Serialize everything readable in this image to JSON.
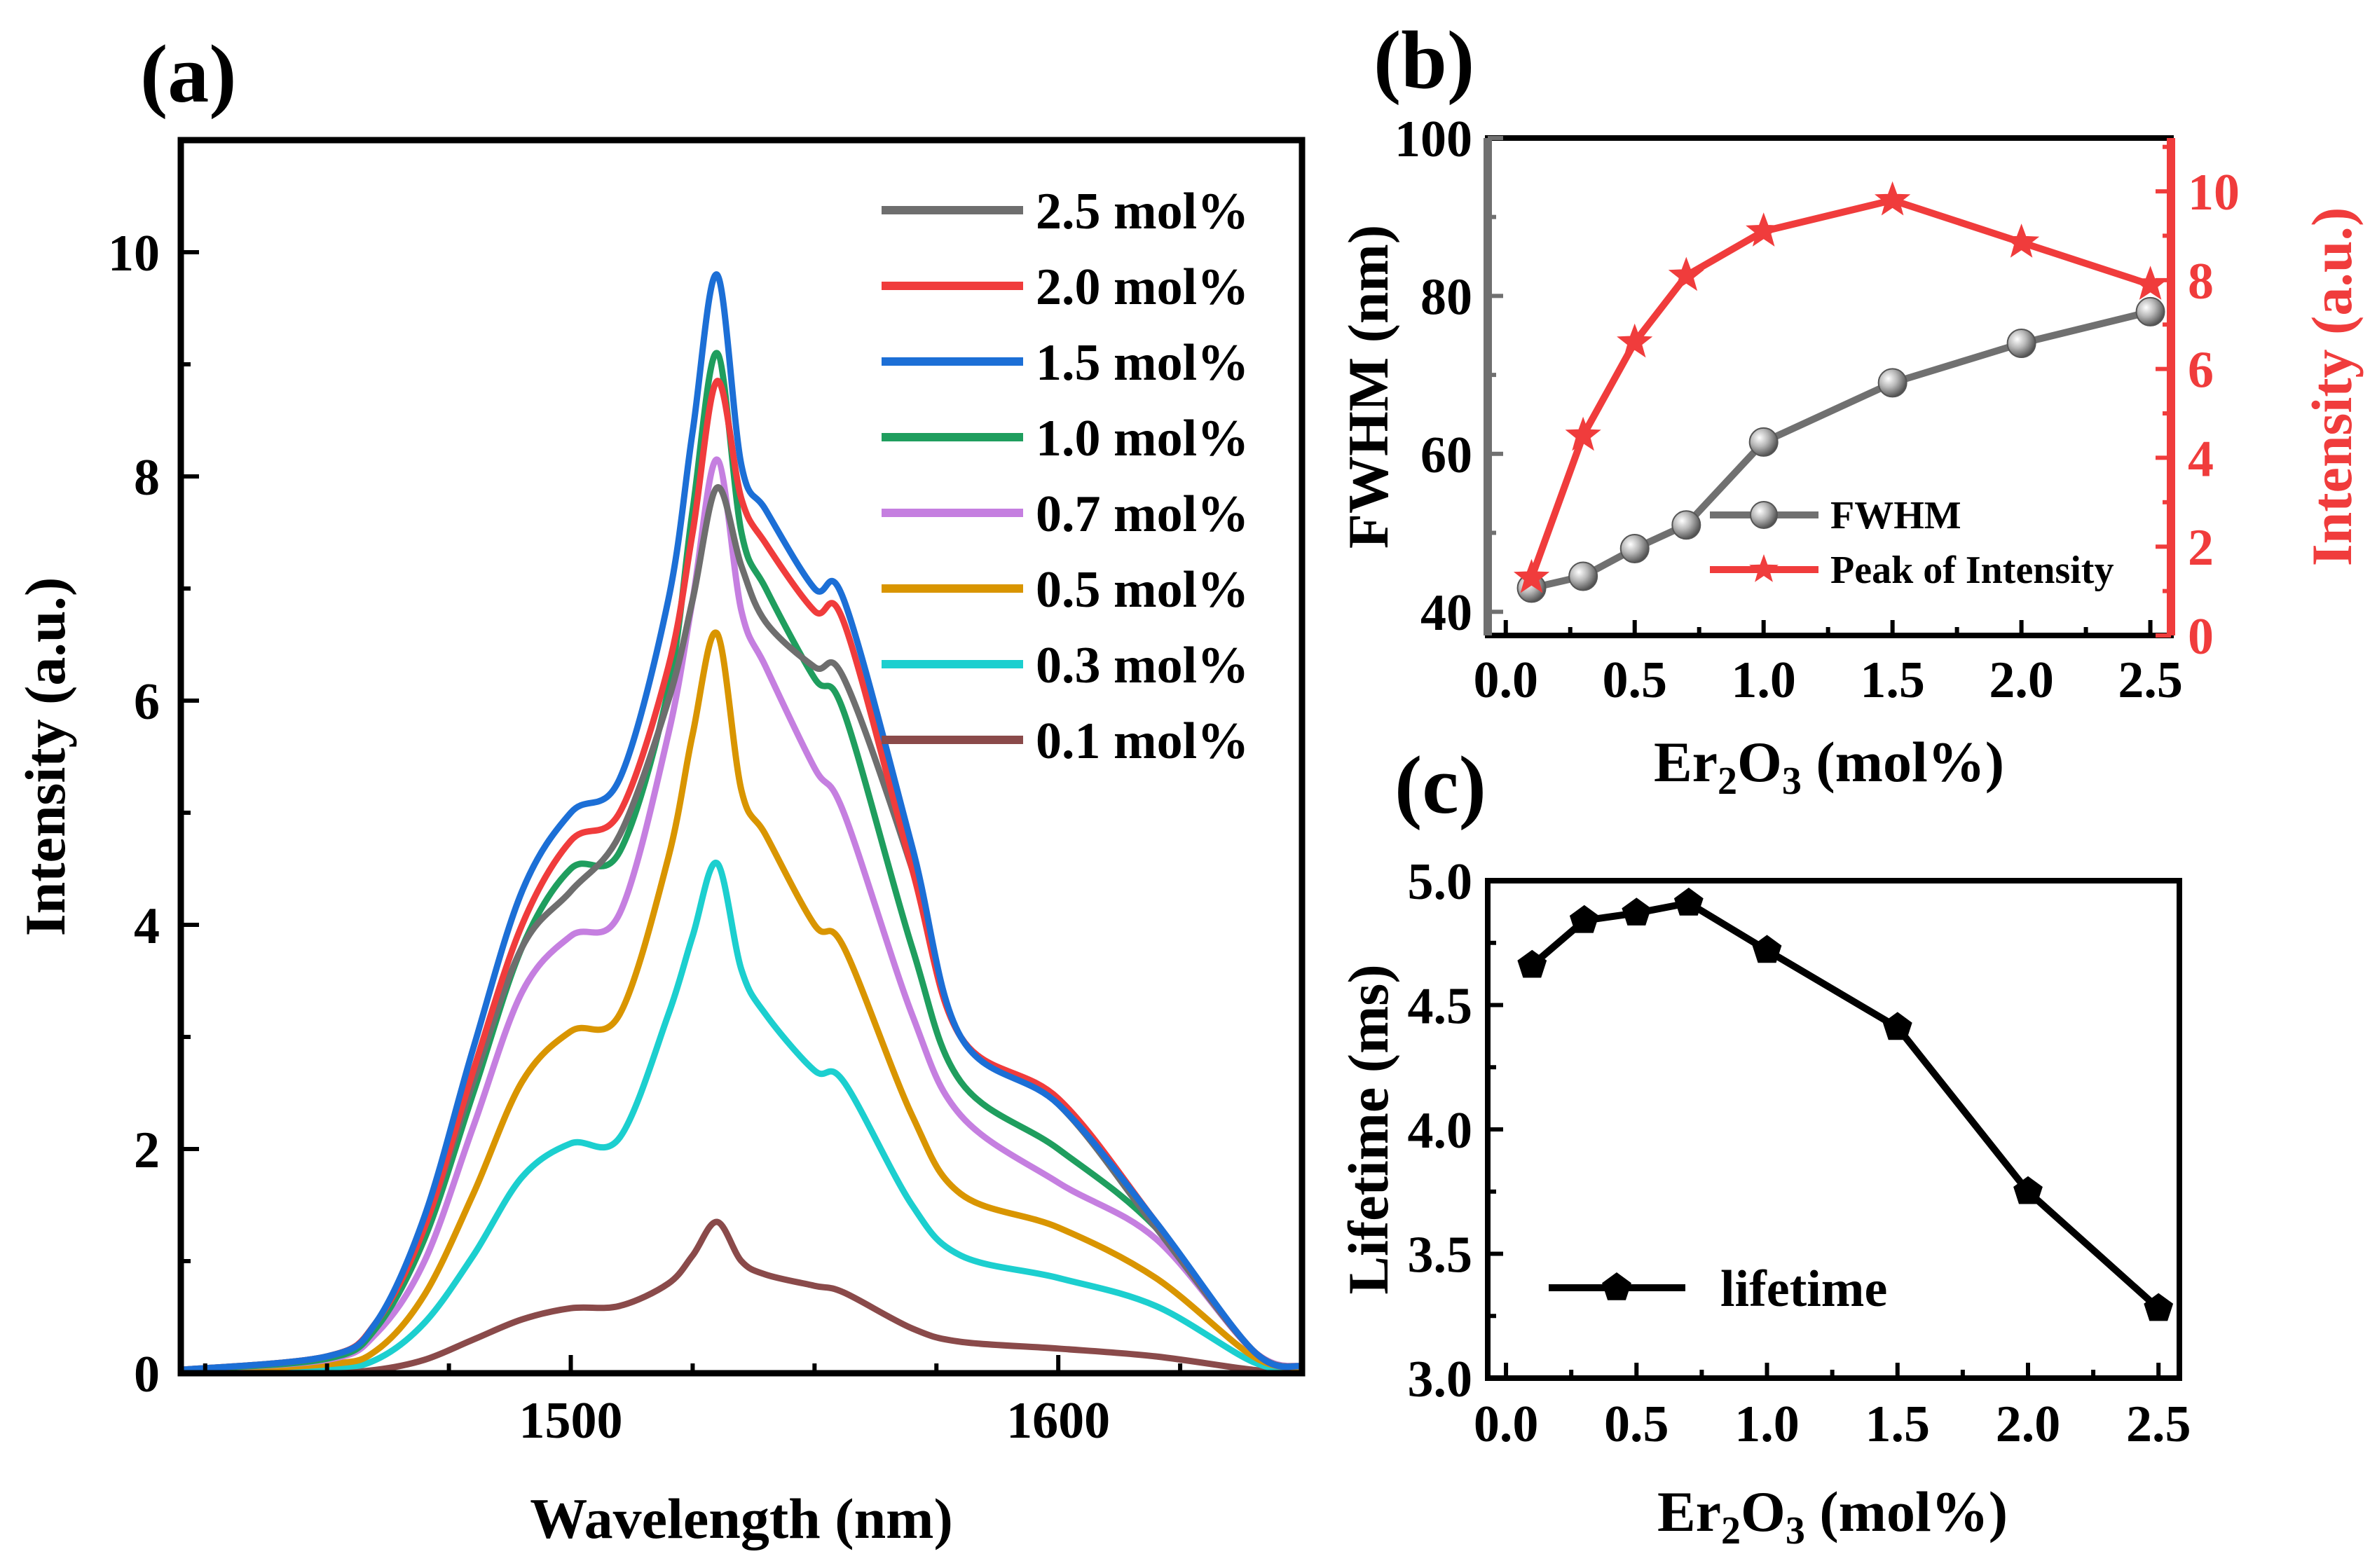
{
  "chart_data": [
    {
      "panel": "(a)",
      "type": "line",
      "xlabel": "Wavelength (nm)",
      "ylabel": "Intensity (a.u.)",
      "xlim": [
        1420,
        1650
      ],
      "ylim": [
        0,
        11
      ],
      "xticks": [
        1500,
        1600
      ],
      "yticks": [
        0,
        2,
        4,
        6,
        8,
        10
      ],
      "legend_position": "top-right",
      "series_order_draw": [
        "0.1 mol%",
        "0.3 mol%",
        "0.5 mol%",
        "0.7 mol%",
        "1.0 mol%",
        "2.5 mol%",
        "2.0 mol%",
        "1.5 mol%"
      ],
      "series": [
        {
          "name": "2.5 mol%",
          "color": "#6e6e6e",
          "x": [
            1420,
            1450,
            1460,
            1470,
            1480,
            1490,
            1500,
            1510,
            1520,
            1525,
            1530,
            1535,
            1540,
            1550,
            1556,
            1570,
            1580,
            1600,
            1620,
            1640,
            1650
          ],
          "values": [
            0.03,
            0.15,
            0.45,
            1.3,
            2.6,
            3.8,
            4.3,
            4.8,
            6.0,
            6.9,
            7.9,
            7.2,
            6.7,
            6.3,
            6.2,
            4.5,
            3.0,
            2.4,
            1.3,
            0.2,
            0.06
          ]
        },
        {
          "name": "2.0 mol%",
          "color": "#f03c3c",
          "x": [
            1420,
            1450,
            1460,
            1470,
            1480,
            1490,
            1500,
            1510,
            1520,
            1525,
            1530,
            1535,
            1540,
            1550,
            1556,
            1570,
            1580,
            1600,
            1620,
            1640,
            1650
          ],
          "values": [
            0.03,
            0.15,
            0.45,
            1.3,
            2.7,
            4.0,
            4.75,
            5.0,
            6.3,
            7.5,
            8.85,
            7.8,
            7.4,
            6.8,
            6.7,
            4.5,
            3.0,
            2.45,
            1.35,
            0.2,
            0.06
          ]
        },
        {
          "name": "1.5 mol%",
          "color": "#1c6fd6",
          "x": [
            1420,
            1450,
            1460,
            1470,
            1480,
            1490,
            1500,
            1510,
            1520,
            1525,
            1530,
            1535,
            1540,
            1550,
            1556,
            1570,
            1580,
            1600,
            1620,
            1640,
            1650
          ],
          "values": [
            0.03,
            0.15,
            0.45,
            1.4,
            2.9,
            4.3,
            5.0,
            5.3,
            6.9,
            8.4,
            9.8,
            8.1,
            7.7,
            7.0,
            6.9,
            4.7,
            3.0,
            2.4,
            1.35,
            0.2,
            0.06
          ]
        },
        {
          "name": "1.0 mol%",
          "color": "#1f9e5e",
          "x": [
            1420,
            1450,
            1460,
            1470,
            1480,
            1490,
            1500,
            1510,
            1520,
            1525,
            1530,
            1535,
            1540,
            1550,
            1556,
            1570,
            1580,
            1600,
            1620,
            1640,
            1650
          ],
          "values": [
            0.03,
            0.13,
            0.4,
            1.2,
            2.5,
            3.8,
            4.5,
            4.65,
            6.1,
            7.7,
            9.1,
            7.5,
            7.0,
            6.2,
            5.9,
            3.8,
            2.6,
            2.0,
            1.3,
            0.2,
            0.06
          ]
        },
        {
          "name": "0.7 mol%",
          "color": "#c57fe0",
          "x": [
            1420,
            1450,
            1460,
            1470,
            1480,
            1490,
            1500,
            1510,
            1520,
            1525,
            1530,
            1535,
            1540,
            1550,
            1556,
            1570,
            1580,
            1600,
            1620,
            1640,
            1650
          ],
          "values": [
            0.03,
            0.12,
            0.35,
            1.0,
            2.2,
            3.4,
            3.9,
            4.1,
            5.7,
            6.9,
            8.15,
            6.8,
            6.3,
            5.4,
            5.0,
            3.2,
            2.3,
            1.7,
            1.2,
            0.2,
            0.06
          ]
        },
        {
          "name": "0.5 mol%",
          "color": "#d99500",
          "x": [
            1420,
            1450,
            1460,
            1470,
            1480,
            1490,
            1500,
            1510,
            1520,
            1525,
            1530,
            1535,
            1540,
            1550,
            1556,
            1570,
            1580,
            1600,
            1620,
            1640,
            1650
          ],
          "values": [
            0.02,
            0.08,
            0.2,
            0.7,
            1.6,
            2.6,
            3.05,
            3.2,
            4.6,
            5.7,
            6.6,
            5.2,
            4.8,
            4.0,
            3.8,
            2.3,
            1.6,
            1.3,
            0.85,
            0.15,
            0.05
          ]
        },
        {
          "name": "0.3 mol%",
          "color": "#1ccfcf",
          "x": [
            1420,
            1450,
            1460,
            1470,
            1480,
            1490,
            1500,
            1510,
            1520,
            1525,
            1530,
            1535,
            1540,
            1550,
            1556,
            1570,
            1580,
            1600,
            1620,
            1640,
            1650
          ],
          "values": [
            0.02,
            0.05,
            0.12,
            0.45,
            1.05,
            1.75,
            2.05,
            2.1,
            3.2,
            3.9,
            4.55,
            3.6,
            3.2,
            2.7,
            2.6,
            1.5,
            1.05,
            0.85,
            0.6,
            0.1,
            0.03
          ]
        },
        {
          "name": "0.1 mol%",
          "color": "#8a4a4a",
          "x": [
            1420,
            1450,
            1460,
            1470,
            1480,
            1490,
            1500,
            1510,
            1520,
            1525,
            1530,
            1535,
            1540,
            1550,
            1556,
            1570,
            1580,
            1600,
            1620,
            1640,
            1650
          ],
          "values": [
            0.0,
            0.01,
            0.03,
            0.12,
            0.3,
            0.48,
            0.58,
            0.6,
            0.8,
            1.05,
            1.35,
            1.0,
            0.88,
            0.78,
            0.72,
            0.4,
            0.28,
            0.22,
            0.15,
            0.03,
            0.01
          ]
        }
      ]
    },
    {
      "panel": "(b)",
      "type": "line",
      "xlabel_main": "Er",
      "xlabel_sub2": "2",
      "xlabel_mid": "O",
      "xlabel_sub3": "3",
      "xlabel_tail": " (mol%)",
      "ylabel_left": "FWHM (nm)",
      "ylabel_right": "Intensity (a.u.)",
      "xlim": [
        -0.07,
        2.58
      ],
      "ylim_left": [
        37,
        100
      ],
      "ylim_right": [
        0,
        11.2
      ],
      "xticks": [
        0.0,
        0.5,
        1.0,
        1.5,
        2.0,
        2.5
      ],
      "xtick_labels": [
        "0.0",
        "0.5",
        "1.0",
        "1.5",
        "2.0",
        "2.5"
      ],
      "yticks_left": [
        40,
        60,
        80,
        100
      ],
      "yticks_right": [
        0,
        2,
        4,
        6,
        8,
        10
      ],
      "legend_position": "bottom-right",
      "series": [
        {
          "name": "FWHM",
          "axis": "left",
          "color": "#707070",
          "marker": "sphere",
          "x": [
            0.1,
            0.3,
            0.5,
            0.7,
            1.0,
            1.5,
            2.0,
            2.5
          ],
          "values": [
            43,
            44.5,
            48,
            51,
            61.5,
            69,
            74,
            78
          ]
        },
        {
          "name": "Peak of Intensity",
          "axis": "right",
          "color": "#f03c3c",
          "marker": "star",
          "x": [
            0.1,
            0.3,
            0.5,
            0.7,
            1.0,
            1.5,
            2.0,
            2.5
          ],
          "values": [
            1.3,
            4.5,
            6.6,
            8.1,
            9.1,
            9.8,
            8.85,
            7.9
          ]
        }
      ]
    },
    {
      "panel": "(c)",
      "type": "line",
      "xlabel_main": "Er",
      "xlabel_sub2": "2",
      "xlabel_mid": "O",
      "xlabel_sub3": "3",
      "xlabel_tail": " (mol%)",
      "ylabel": "Lifetime (ms)",
      "xlim": [
        -0.07,
        2.58
      ],
      "ylim": [
        3.0,
        5.0
      ],
      "xticks": [
        0.0,
        0.5,
        1.0,
        1.5,
        2.0,
        2.5
      ],
      "xtick_labels": [
        "0.0",
        "0.5",
        "1.0",
        "1.5",
        "2.0",
        "2.5"
      ],
      "yticks": [
        3.0,
        3.5,
        4.0,
        4.5,
        5.0
      ],
      "ytick_labels": [
        "3.0",
        "3.5",
        "4.0",
        "4.5",
        "5.0"
      ],
      "legend_position": "bottom-left",
      "series": [
        {
          "name": "lifetime",
          "color": "#000000",
          "marker": "pentagon",
          "x": [
            0.1,
            0.3,
            0.5,
            0.7,
            1.0,
            1.5,
            2.0,
            2.5
          ],
          "values": [
            4.66,
            4.84,
            4.87,
            4.91,
            4.72,
            4.41,
            3.75,
            3.28
          ]
        }
      ]
    }
  ]
}
